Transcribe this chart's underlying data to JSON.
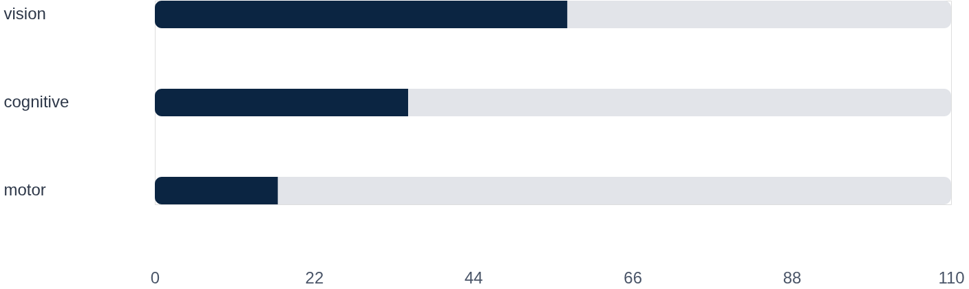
{
  "chart_data": {
    "type": "bar",
    "orientation": "horizontal",
    "categories": [
      "vision",
      "cognitive",
      "motor"
    ],
    "stacked": true,
    "series": [
      {
        "color": "#0b2542",
        "values": [
          57,
          35,
          17
        ]
      },
      {
        "color": "#e2e4e9",
        "values": [
          53,
          75,
          93
        ]
      }
    ],
    "xlim": [
      0,
      110
    ],
    "xticks": [
      0,
      22,
      44,
      66,
      88,
      110
    ],
    "grid": false
  }
}
